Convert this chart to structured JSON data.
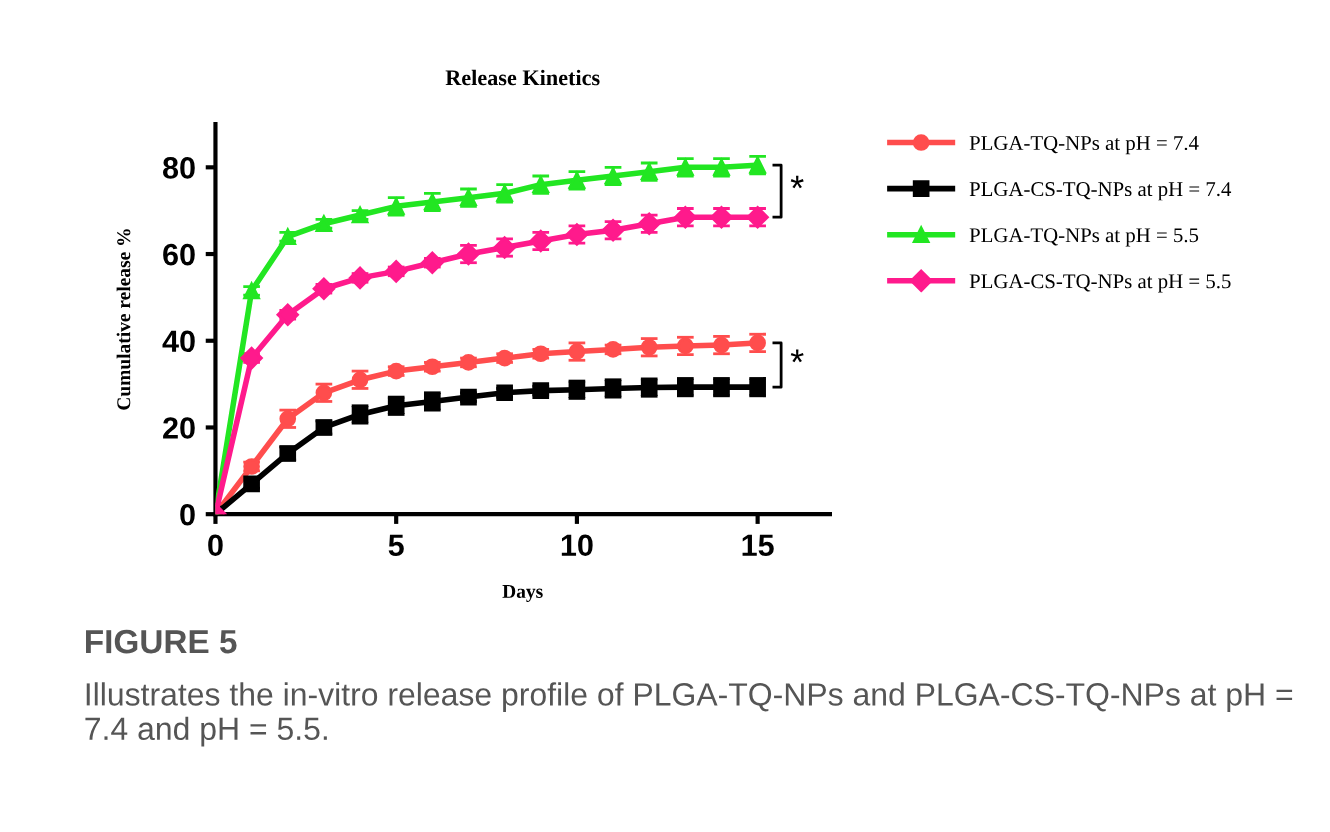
{
  "chart_data": {
    "type": "line",
    "title": "Release Kinetics",
    "xlabel": "Days",
    "ylabel": "Cumulative release %",
    "x": [
      0,
      1,
      2,
      3,
      4,
      5,
      6,
      7,
      8,
      9,
      10,
      11,
      12,
      13,
      14,
      15
    ],
    "series": [
      {
        "name": "PLGA-TQ-NPs at pH = 7.4",
        "color": "#ff4d4d",
        "marker": "circle",
        "values": [
          0,
          11,
          22,
          28,
          31,
          33,
          34,
          35,
          36,
          37,
          37.5,
          38,
          38.5,
          38.8,
          39,
          39.5
        ],
        "errors": [
          null,
          1,
          2,
          2,
          2,
          1,
          1,
          1,
          1,
          1,
          2,
          1,
          2,
          2,
          2,
          2
        ]
      },
      {
        "name": "PLGA-CS-TQ-NPs at pH = 7.4",
        "color": "#000000",
        "marker": "square",
        "values": [
          0,
          7,
          14,
          20,
          23,
          25,
          26,
          27,
          28,
          28.5,
          28.7,
          29,
          29.2,
          29.3,
          29.3,
          29.3
        ],
        "errors": [
          null,
          1,
          1.5,
          1.5,
          2,
          2,
          2,
          1,
          1,
          1,
          2,
          2,
          2,
          2,
          2,
          2
        ]
      },
      {
        "name": "PLGA-TQ-NPs at pH = 5.5",
        "color": "#22e622",
        "marker": "triangle",
        "values": [
          0,
          51.5,
          64,
          67,
          69,
          71,
          72,
          73,
          74,
          76,
          77,
          78,
          79,
          80,
          80,
          80.5
        ],
        "errors": [
          null,
          1,
          1,
          1,
          1,
          2,
          2,
          2,
          2,
          2,
          2,
          2,
          2,
          2,
          2,
          2
        ]
      },
      {
        "name": "PLGA-CS-TQ-NPs at pH = 5.5",
        "color": "#ff1a8c",
        "marker": "diamond",
        "values": [
          0,
          36,
          46,
          52,
          54.5,
          56,
          58,
          60,
          61.5,
          63,
          64.5,
          65.5,
          67,
          68.5,
          68.5,
          68.5
        ],
        "errors": [
          null,
          1,
          1,
          1,
          1,
          1,
          1,
          2,
          2,
          2,
          2,
          2,
          2,
          2,
          2,
          2
        ]
      }
    ],
    "xlim": [
      0,
      17
    ],
    "ylim": [
      0,
      90
    ],
    "xticks": [
      0,
      5,
      10,
      15
    ],
    "yticks": [
      0,
      20,
      40,
      60,
      80
    ],
    "grid": false,
    "legend": "right",
    "line_style": "solid",
    "annotations": [
      "*",
      "*",
      "FIGURE 5",
      "Illustrates the in-vitro release profile of PLGA-TQ-NPs and PLGA-CS-TQ-NPs at pH = 7.4 and pH = 5.5."
    ]
  }
}
